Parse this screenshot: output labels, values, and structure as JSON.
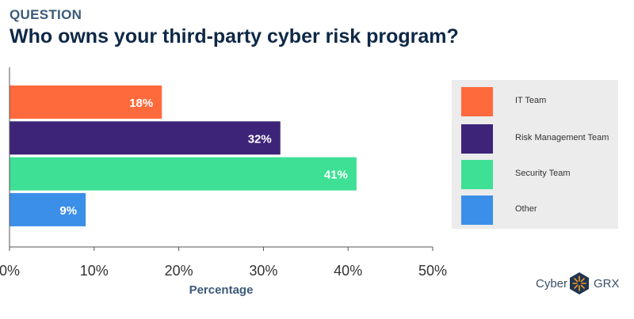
{
  "header": {
    "kicker": "QUESTION",
    "title": "Who owns your third-party cyber risk program?"
  },
  "chart_data": {
    "type": "bar",
    "orientation": "horizontal",
    "categories": [
      "IT Team",
      "Risk Management Team",
      "Security Team",
      "Other"
    ],
    "values": [
      18,
      32,
      41,
      9
    ],
    "value_labels": [
      "18%",
      "32%",
      "41%",
      "9%"
    ],
    "colors": [
      "#ff6a3d",
      "#3d2479",
      "#3de095",
      "#3b8fe8"
    ],
    "xlabel": "Percentage",
    "ylabel": "",
    "xlim": [
      0,
      50
    ],
    "xticks": [
      0,
      10,
      20,
      30,
      40,
      50
    ],
    "xtick_labels": [
      "0%",
      "10%",
      "20%",
      "30%",
      "40%",
      "50%"
    ],
    "grid": false,
    "legend_position": "right"
  },
  "legend": {
    "items": [
      {
        "label": "IT Team",
        "color": "#ff6a3d"
      },
      {
        "label": "Risk Management Team",
        "color": "#3d2479"
      },
      {
        "label": "Security Team",
        "color": "#3de095"
      },
      {
        "label": "Other",
        "color": "#3b8fe8"
      }
    ]
  },
  "brand": {
    "name_left": "Cyber",
    "name_right": "GRX",
    "logo_icon": "compass-star-icon"
  }
}
